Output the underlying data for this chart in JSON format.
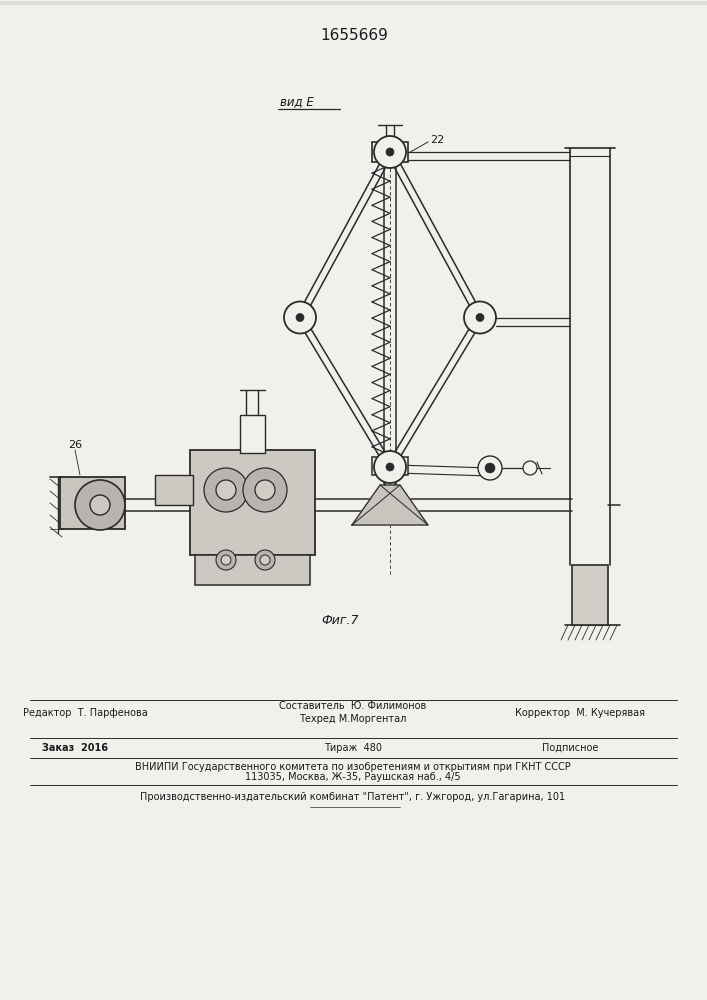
{
  "title": "1655669",
  "fig_label": "Фиг.7",
  "view_label": "вид E",
  "background_color": "#f2f0ed",
  "line_color": "#2a2a2a",
  "text_color": "#1a1a1a",
  "footer": {
    "line1_left": "Редактор  Т. Парфенова",
    "line1_mid1": "Составитель  Ю. Филимонов",
    "line1_mid2": "Техред М.Моргентал",
    "line1_right": "Корректор  М. Кучерявая",
    "line2_left": "Заказ  2016",
    "line2_mid": "Тираж  480",
    "line2_right": "Подписное",
    "line3": "ВНИИПИ Государственного комитета по изобретениям и открытиям при ГКНТ СССР",
    "line4": "113035, Москва, Ж-35, Раушская наб., 4/5",
    "line5": "Производственно-издательский комбинат \"Патент\", г. Ужгород, ул.Гагарина, 101"
  }
}
